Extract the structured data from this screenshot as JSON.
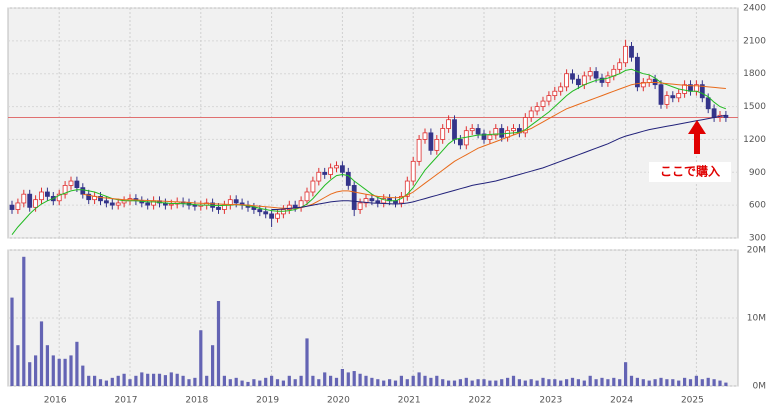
{
  "chart_data": [
    {
      "type": "candlestick",
      "ylim": [
        300,
        2400
      ],
      "yticks": [
        300,
        600,
        900,
        1200,
        1500,
        1800,
        2100,
        2400
      ],
      "grid": true,
      "up_color": "#e03030",
      "down_color": "#34348a",
      "open": [
        600,
        560,
        620,
        700,
        580,
        650,
        720,
        680,
        640,
        700,
        780,
        820,
        760,
        700,
        650,
        680,
        640,
        620,
        600,
        620,
        640,
        660,
        640,
        620,
        600,
        640,
        620,
        600,
        610,
        630,
        620,
        600,
        590,
        600,
        620,
        580,
        560,
        600,
        650,
        620,
        600,
        580,
        560,
        540,
        520,
        480,
        520,
        560,
        600,
        580,
        640,
        720,
        820,
        900,
        880,
        940,
        960,
        900,
        780,
        560,
        620,
        660,
        640,
        620,
        660,
        640,
        620,
        680,
        820,
        1000,
        1200,
        1260,
        1100,
        1200,
        1300,
        1380,
        1200,
        1150,
        1280,
        1300,
        1250,
        1200,
        1240,
        1300,
        1220,
        1280,
        1300,
        1260,
        1400,
        1460,
        1500,
        1550,
        1600,
        1640,
        1680,
        1800,
        1750,
        1700,
        1780,
        1820,
        1760,
        1720,
        1780,
        1840,
        1900,
        2050,
        1950,
        1680,
        1720,
        1750,
        1700,
        1520,
        1600,
        1580,
        1620,
        1700,
        1640,
        1700,
        1580,
        1480,
        1400,
        1420
      ],
      "high": [
        640,
        660,
        740,
        740,
        690,
        760,
        760,
        720,
        740,
        820,
        860,
        860,
        800,
        740,
        720,
        720,
        680,
        660,
        660,
        680,
        700,
        700,
        680,
        660,
        680,
        680,
        660,
        650,
        670,
        670,
        660,
        640,
        640,
        660,
        660,
        620,
        640,
        690,
        690,
        660,
        640,
        620,
        600,
        580,
        560,
        560,
        600,
        640,
        640,
        680,
        760,
        860,
        940,
        940,
        980,
        1000,
        1000,
        940,
        820,
        660,
        700,
        700,
        680,
        700,
        700,
        680,
        720,
        860,
        1040,
        1240,
        1300,
        1300,
        1240,
        1340,
        1420,
        1420,
        1240,
        1320,
        1340,
        1340,
        1290,
        1280,
        1340,
        1340,
        1320,
        1340,
        1340,
        1440,
        1500,
        1540,
        1590,
        1640,
        1680,
        1720,
        1840,
        1840,
        1790,
        1820,
        1860,
        1860,
        1800,
        1820,
        1880,
        1940,
        2110,
        2090,
        1990,
        1760,
        1790,
        1790,
        1740,
        1640,
        1640,
        1660,
        1740,
        1740,
        1740,
        1740,
        1620,
        1520,
        1460,
        1460
      ],
      "low": [
        520,
        520,
        580,
        540,
        540,
        610,
        640,
        600,
        600,
        660,
        740,
        720,
        660,
        610,
        610,
        600,
        580,
        560,
        560,
        580,
        600,
        600,
        580,
        560,
        560,
        580,
        560,
        560,
        570,
        580,
        560,
        550,
        550,
        560,
        540,
        520,
        520,
        560,
        580,
        560,
        540,
        520,
        500,
        480,
        400,
        440,
        480,
        520,
        540,
        540,
        600,
        680,
        780,
        840,
        840,
        900,
        860,
        740,
        500,
        520,
        580,
        600,
        580,
        580,
        600,
        580,
        580,
        640,
        780,
        960,
        1160,
        1060,
        1060,
        1160,
        1260,
        1160,
        1110,
        1110,
        1240,
        1210,
        1160,
        1160,
        1200,
        1180,
        1180,
        1240,
        1220,
        1220,
        1360,
        1420,
        1460,
        1510,
        1560,
        1600,
        1640,
        1710,
        1660,
        1660,
        1740,
        1720,
        1680,
        1680,
        1740,
        1800,
        1860,
        1910,
        1640,
        1640,
        1680,
        1660,
        1480,
        1480,
        1540,
        1540,
        1580,
        1600,
        1600,
        1540,
        1440,
        1360,
        1360,
        1360
      ],
      "close": [
        560,
        620,
        700,
        580,
        650,
        720,
        680,
        640,
        700,
        780,
        820,
        760,
        700,
        650,
        680,
        640,
        620,
        600,
        620,
        640,
        660,
        640,
        620,
        600,
        640,
        620,
        600,
        610,
        630,
        620,
        600,
        590,
        600,
        620,
        580,
        560,
        600,
        650,
        620,
        600,
        580,
        560,
        540,
        520,
        480,
        520,
        560,
        600,
        580,
        640,
        720,
        820,
        900,
        880,
        940,
        960,
        900,
        780,
        560,
        620,
        660,
        640,
        620,
        660,
        640,
        620,
        680,
        820,
        1000,
        1200,
        1260,
        1100,
        1200,
        1300,
        1380,
        1200,
        1150,
        1280,
        1300,
        1250,
        1200,
        1240,
        1300,
        1220,
        1280,
        1300,
        1260,
        1400,
        1460,
        1500,
        1550,
        1600,
        1640,
        1680,
        1800,
        1750,
        1700,
        1780,
        1820,
        1760,
        1720,
        1780,
        1840,
        1900,
        2050,
        1950,
        1680,
        1720,
        1750,
        1700,
        1520,
        1600,
        1580,
        1620,
        1700,
        1640,
        1700,
        1580,
        1480,
        1400,
        1420,
        1400
      ],
      "moving_averages": [
        {
          "color": "#22bb22",
          "values": [
            330,
            400,
            460,
            520,
            570,
            610,
            640,
            660,
            690,
            710,
            730,
            740,
            740,
            730,
            720,
            700,
            680,
            660,
            650,
            640,
            640,
            640,
            635,
            630,
            630,
            625,
            620,
            615,
            615,
            612,
            610,
            605,
            600,
            600,
            598,
            596,
            598,
            600,
            605,
            600,
            595,
            585,
            570,
            560,
            550,
            545,
            545,
            550,
            560,
            580,
            610,
            660,
            720,
            780,
            830,
            870,
            880,
            870,
            820,
            780,
            740,
            700,
            670,
            650,
            640,
            640,
            660,
            700,
            760,
            840,
            920,
            980,
            1040,
            1100,
            1160,
            1200,
            1210,
            1220,
            1230,
            1240,
            1240,
            1245,
            1250,
            1250,
            1255,
            1260,
            1265,
            1290,
            1330,
            1370,
            1410,
            1450,
            1500,
            1550,
            1600,
            1640,
            1670,
            1700,
            1720,
            1740,
            1750,
            1760,
            1780,
            1800,
            1830,
            1840,
            1820,
            1800,
            1790,
            1760,
            1720,
            1700,
            1680,
            1660,
            1650,
            1640,
            1640,
            1620,
            1590,
            1540,
            1500,
            1480
          ]
        },
        {
          "color": "#e86a1a",
          "values": [
            null,
            null,
            null,
            null,
            null,
            null,
            null,
            null,
            null,
            null,
            null,
            null,
            700,
            690,
            680,
            670,
            665,
            660,
            655,
            650,
            650,
            648,
            645,
            642,
            640,
            638,
            635,
            632,
            630,
            628,
            625,
            620,
            618,
            615,
            612,
            610,
            608,
            606,
            605,
            603,
            600,
            595,
            590,
            585,
            580,
            575,
            572,
            570,
            572,
            578,
            590,
            610,
            640,
            670,
            700,
            720,
            730,
            730,
            720,
            710,
            700,
            690,
            680,
            675,
            670,
            668,
            672,
            690,
            720,
            760,
            800,
            840,
            880,
            920,
            960,
            1000,
            1030,
            1060,
            1090,
            1120,
            1140,
            1160,
            1180,
            1200,
            1220,
            1240,
            1260,
            1280,
            1300,
            1330,
            1360,
            1390,
            1420,
            1450,
            1480,
            1500,
            1520,
            1540,
            1560,
            1580,
            1600,
            1620,
            1640,
            1660,
            1680,
            1700,
            1710,
            1715,
            1720,
            1720,
            1715,
            1710,
            1705,
            1700,
            1695,
            1690,
            1690,
            1685,
            1680,
            1675,
            1670,
            1665
          ]
        },
        {
          "color": "#22227a",
          "values": [
            null,
            null,
            null,
            null,
            null,
            null,
            null,
            null,
            null,
            null,
            null,
            null,
            null,
            null,
            null,
            null,
            null,
            null,
            null,
            null,
            null,
            null,
            null,
            null,
            null,
            null,
            null,
            null,
            null,
            null,
            null,
            null,
            null,
            null,
            null,
            null,
            null,
            null,
            null,
            null,
            null,
            null,
            null,
            null,
            560,
            560,
            565,
            570,
            575,
            580,
            590,
            600,
            610,
            620,
            630,
            635,
            640,
            640,
            635,
            630,
            625,
            620,
            618,
            615,
            612,
            610,
            612,
            620,
            630,
            645,
            660,
            675,
            690,
            705,
            720,
            735,
            750,
            765,
            780,
            790,
            800,
            810,
            820,
            835,
            850,
            865,
            880,
            895,
            910,
            925,
            940,
            960,
            980,
            1000,
            1020,
            1040,
            1060,
            1080,
            1100,
            1120,
            1140,
            1160,
            1185,
            1210,
            1230,
            1245,
            1260,
            1275,
            1290,
            1300,
            1310,
            1320,
            1330,
            1340,
            1350,
            1360,
            1370,
            1380,
            1390,
            1400,
            1410,
            1420
          ]
        }
      ],
      "reference_line": {
        "value": 1400,
        "color": "#e07070"
      },
      "annotation": "ここで購入"
    },
    {
      "type": "bar",
      "categories": [
        null,
        null,
        null,
        null,
        null,
        null,
        null,
        null,
        "2016",
        null,
        null,
        null,
        null,
        null,
        null,
        null,
        null,
        null,
        null,
        null,
        "2017",
        null,
        null,
        null,
        null,
        null,
        null,
        null,
        null,
        null,
        null,
        null,
        "2018",
        null,
        null,
        null,
        null,
        null,
        null,
        null,
        null,
        null,
        null,
        null,
        "2019",
        null,
        null,
        null,
        null,
        null,
        null,
        null,
        null,
        null,
        null,
        null,
        "2020",
        null,
        null,
        null,
        null,
        null,
        null,
        null,
        null,
        null,
        null,
        null,
        "2021",
        null,
        null,
        null,
        null,
        null,
        null,
        null,
        null,
        null,
        null,
        null,
        "2022",
        null,
        null,
        null,
        null,
        null,
        null,
        null,
        null,
        null,
        null,
        null,
        "2023",
        null,
        null,
        null,
        null,
        null,
        null,
        null,
        null,
        null,
        null,
        null,
        "2024",
        null,
        null,
        null,
        null,
        null,
        null,
        null,
        null,
        null,
        null,
        null,
        "2025",
        null,
        null,
        null,
        null,
        null
      ],
      "values": [
        13,
        6,
        19,
        3.5,
        4.5,
        9.5,
        6,
        4.5,
        4,
        4,
        4.5,
        6.5,
        3,
        1.5,
        1.5,
        1,
        0.8,
        1.2,
        1.5,
        1.8,
        1,
        1.5,
        2,
        1.8,
        1.8,
        1.8,
        1.6,
        2,
        1.8,
        1.5,
        1,
        1.2,
        8.2,
        1.5,
        6,
        12.5,
        1.5,
        1,
        1.2,
        0.8,
        0.6,
        1,
        0.8,
        1.2,
        1.5,
        1,
        0.8,
        1.5,
        1,
        1.5,
        7,
        1.5,
        1,
        2,
        1.5,
        1.2,
        2.5,
        2,
        2.2,
        1.8,
        1.5,
        1.2,
        1,
        0.8,
        1,
        0.8,
        1.5,
        1,
        1.5,
        2,
        1.5,
        1.2,
        1.5,
        1,
        0.8,
        0.8,
        1,
        1.2,
        0.8,
        1,
        1,
        0.8,
        0.8,
        1,
        1.2,
        1.5,
        1,
        0.8,
        1,
        0.8,
        1.2,
        1,
        1,
        0.8,
        1,
        1.2,
        1,
        0.8,
        1.5,
        1,
        1.2,
        1,
        1.2,
        1,
        3.5,
        1.5,
        1.2,
        1,
        0.8,
        1,
        1.2,
        1,
        1,
        0.8,
        1.2,
        1,
        1.5,
        1,
        1.2,
        1,
        0.8,
        0.5
      ],
      "color": "#6464b4",
      "ylim": [
        0,
        20
      ],
      "yticks": [
        {
          "value": 0,
          "label": "0M"
        },
        {
          "value": 10,
          "label": "10M"
        },
        {
          "value": 20,
          "label": "20M"
        }
      ],
      "grid": true
    }
  ]
}
